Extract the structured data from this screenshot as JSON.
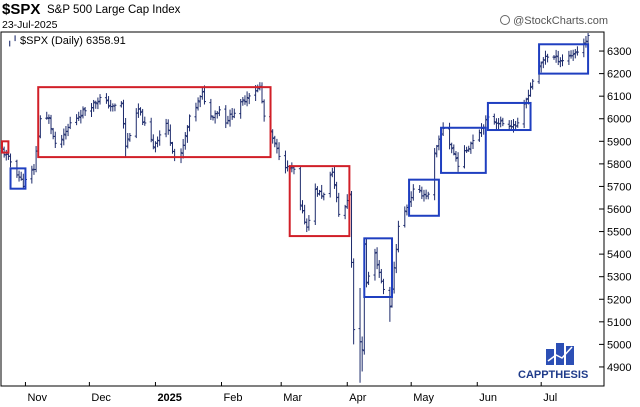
{
  "header": {
    "symbol": "$SPX",
    "name": "S&P 500 Large Cap Index",
    "date": "23-Jul-2025",
    "watermark": "@StockCharts.com"
  },
  "legend": {
    "text": "$SPX (Daily) 6358.91"
  },
  "logo": {
    "text": "CAPPTHESIS",
    "color": "#1f3b8a"
  },
  "chart_data": {
    "type": "bar",
    "subtype": "ohlc",
    "title": "$SPX S&P 500 Large Cap Index",
    "series_name": "$SPX (Daily)",
    "last_value": 6358.91,
    "ylim": [
      4820,
      6380
    ],
    "yticks": [
      4900,
      5000,
      5100,
      5200,
      5300,
      5400,
      5500,
      5600,
      5700,
      5800,
      5900,
      6000,
      6100,
      6200,
      6300
    ],
    "xlim": [
      "2024-10-21",
      "2025-07-30"
    ],
    "xticks": [
      {
        "date": "2024-11-01",
        "label": "Nov"
      },
      {
        "date": "2024-12-01",
        "label": "Dec"
      },
      {
        "date": "2025-01-01",
        "label": "2025"
      },
      {
        "date": "2025-02-01",
        "label": "Feb"
      },
      {
        "date": "2025-03-01",
        "label": "Mar"
      },
      {
        "date": "2025-04-01",
        "label": "Apr"
      },
      {
        "date": "2025-05-01",
        "label": "May"
      },
      {
        "date": "2025-06-01",
        "label": "Jun"
      },
      {
        "date": "2025-07-01",
        "label": "Jul"
      }
    ],
    "bar_color": "#1c2a6b",
    "grid": false,
    "price_path": [
      [
        "2024-10-21",
        5860
      ],
      [
        "2024-10-25",
        5810
      ],
      [
        "2024-10-31",
        5710
      ],
      [
        "2024-11-05",
        5780
      ],
      [
        "2024-11-08",
        6000
      ],
      [
        "2024-11-12",
        6000
      ],
      [
        "2024-11-15",
        5880
      ],
      [
        "2024-11-19",
        5920
      ],
      [
        "2024-11-22",
        5980
      ],
      [
        "2024-11-29",
        6040
      ],
      [
        "2024-12-06",
        6090
      ],
      [
        "2024-12-12",
        6050
      ],
      [
        "2024-12-16",
        6070
      ],
      [
        "2024-12-18",
        5880
      ],
      [
        "2024-12-24",
        6040
      ],
      [
        "2024-12-31",
        5880
      ],
      [
        "2025-01-06",
        5980
      ],
      [
        "2025-01-10",
        5830
      ],
      [
        "2025-01-13",
        5840
      ],
      [
        "2025-01-17",
        6000
      ],
      [
        "2025-01-23",
        6110
      ],
      [
        "2025-01-27",
        6010
      ],
      [
        "2025-01-31",
        6040
      ],
      [
        "2025-02-03",
        5990
      ],
      [
        "2025-02-07",
        6030
      ],
      [
        "2025-02-14",
        6110
      ],
      [
        "2025-02-19",
        6140
      ],
      [
        "2025-02-21",
        6010
      ],
      [
        "2025-02-27",
        5860
      ],
      [
        "2025-03-04",
        5780
      ],
      [
        "2025-03-07",
        5770
      ],
      [
        "2025-03-10",
        5610
      ],
      [
        "2025-03-13",
        5520
      ],
      [
        "2025-03-17",
        5680
      ],
      [
        "2025-03-21",
        5660
      ],
      [
        "2025-03-25",
        5770
      ],
      [
        "2025-03-28",
        5580
      ],
      [
        "2025-03-31",
        5610
      ],
      [
        "2025-04-02",
        5670
      ],
      [
        "2025-04-04",
        5070
      ],
      [
        "2025-04-08",
        4980
      ],
      [
        "2025-04-09",
        5450
      ],
      [
        "2025-04-10",
        5270
      ],
      [
        "2025-04-14",
        5400
      ],
      [
        "2025-04-17",
        5280
      ],
      [
        "2025-04-21",
        5160
      ],
      [
        "2025-04-25",
        5520
      ],
      [
        "2025-05-02",
        5680
      ],
      [
        "2025-05-09",
        5660
      ],
      [
        "2025-05-12",
        5840
      ],
      [
        "2025-05-16",
        5960
      ],
      [
        "2025-05-23",
        5800
      ],
      [
        "2025-05-30",
        5910
      ],
      [
        "2025-06-06",
        6000
      ],
      [
        "2025-06-13",
        5980
      ],
      [
        "2025-06-20",
        5970
      ],
      [
        "2025-06-27",
        6170
      ],
      [
        "2025-07-03",
        6280
      ],
      [
        "2025-07-11",
        6260
      ],
      [
        "2025-07-18",
        6300
      ],
      [
        "2025-07-23",
        6358.91
      ]
    ],
    "spikes": [
      {
        "date": "2024-12-18",
        "low": 5830
      },
      {
        "date": "2025-04-04",
        "low": 5000
      },
      {
        "date": "2025-04-07",
        "low": 4830,
        "high": 5250
      },
      {
        "date": "2025-04-08",
        "low": 4880
      },
      {
        "date": "2025-04-21",
        "low": 5100
      },
      {
        "date": "2025-07-23",
        "high": 6380
      }
    ],
    "annotations": [
      {
        "type": "rect",
        "color": "#d11f28",
        "x0": "2024-10-21",
        "x1": "2024-10-24",
        "y0": 5850,
        "y1": 5900
      },
      {
        "type": "rect",
        "color": "#d11f28",
        "x0": "2024-11-07",
        "x1": "2025-02-24",
        "y0": 5830,
        "y1": 6140
      },
      {
        "type": "rect",
        "color": "#d11f28",
        "x0": "2025-03-05",
        "x1": "2025-04-02",
        "y0": 5480,
        "y1": 5790
      },
      {
        "type": "rect",
        "color": "#1f3fc0",
        "x0": "2024-10-25",
        "x1": "2024-11-01",
        "y0": 5690,
        "y1": 5780
      },
      {
        "type": "rect",
        "color": "#1f3fc0",
        "x0": "2025-04-09",
        "x1": "2025-04-22",
        "y0": 5210,
        "y1": 5470
      },
      {
        "type": "rect",
        "color": "#1f3fc0",
        "x0": "2025-04-30",
        "x1": "2025-05-14",
        "y0": 5570,
        "y1": 5730
      },
      {
        "type": "rect",
        "color": "#1f3fc0",
        "x0": "2025-05-15",
        "x1": "2025-06-05",
        "y0": 5760,
        "y1": 5960
      },
      {
        "type": "rect",
        "color": "#1f3fc0",
        "x0": "2025-06-06",
        "x1": "2025-06-26",
        "y0": 5950,
        "y1": 6070
      },
      {
        "type": "rect",
        "color": "#1f3fc0",
        "x0": "2025-06-30",
        "x1": "2025-07-23",
        "y0": 6200,
        "y1": 6330
      }
    ]
  }
}
